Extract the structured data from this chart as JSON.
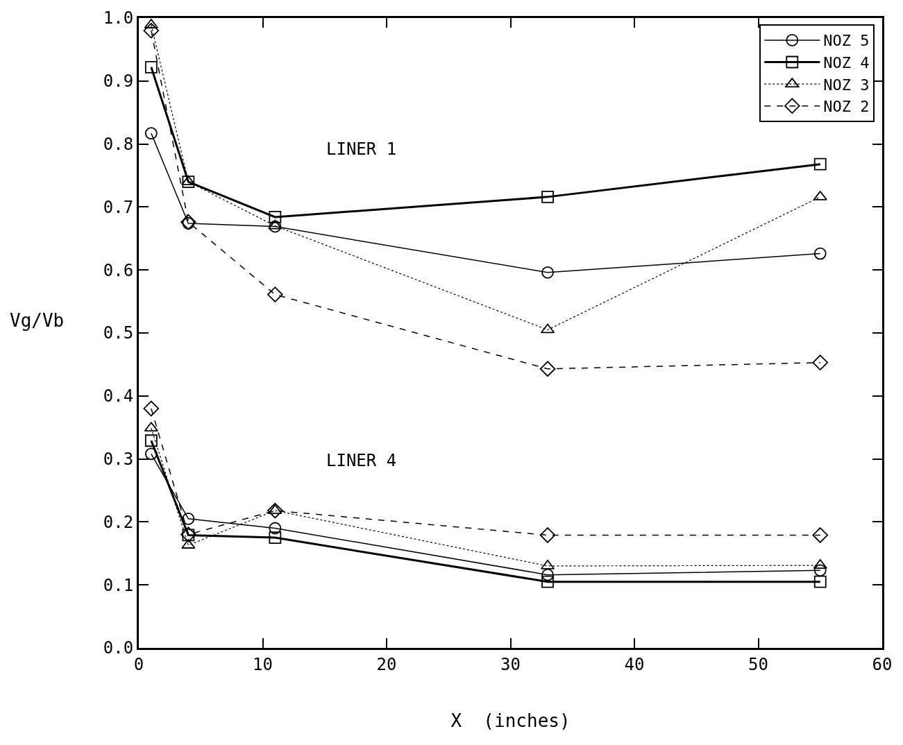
{
  "chart_data": {
    "type": "line",
    "xlabel": "X  (inches)",
    "ylabel": "Vg/Vb",
    "x": [
      1,
      4,
      11,
      33,
      55
    ],
    "series": [
      {
        "name": "NOZ 5",
        "color": "#000000",
        "marker": "circle",
        "line_style": "solid",
        "values": [
          0.817,
          0.674,
          0.669,
          0.596,
          0.626
        ]
      },
      {
        "name": "NOZ 4",
        "color": "#000000",
        "marker": "square",
        "line_style": "solid",
        "values": [
          0.922,
          0.74,
          0.684,
          0.716,
          0.768
        ]
      },
      {
        "name": "NOZ 3",
        "color": "#000000",
        "marker": "triangle",
        "line_style": "dotted",
        "values": [
          0.989,
          0.74,
          0.67,
          0.505,
          0.716
        ]
      },
      {
        "name": "NOZ 2",
        "color": "#000000",
        "marker": "diamond",
        "line_style": "dashed",
        "values": [
          0.98,
          0.676,
          0.561,
          0.443,
          0.453
        ]
      },
      {
        "color": "#000000",
        "marker": "circle",
        "line_style": "solid",
        "values": [
          0.308,
          0.205,
          0.19,
          0.116,
          0.123
        ]
      },
      {
        "color": "#000000",
        "marker": "square",
        "line_style": "solid",
        "values": [
          0.329,
          0.179,
          0.175,
          0.105,
          0.105
        ]
      },
      {
        "color": "#000000",
        "marker": "triangle",
        "line_style": "dotted",
        "values": [
          0.349,
          0.163,
          0.218,
          0.13,
          0.131
        ]
      },
      {
        "color": "#000000",
        "marker": "diamond",
        "line_style": "dashed",
        "values": [
          0.38,
          0.18,
          0.218,
          0.179,
          0.179
        ]
      }
    ],
    "annotations": [
      "LINER 1",
      "LINER 4"
    ],
    "xlim": [
      0,
      60
    ],
    "xticks": [
      0,
      10,
      20,
      30,
      40,
      50,
      60
    ],
    "ylim": [
      0,
      1
    ],
    "yticks": [
      {
        "value": 0,
        "label": "0.0"
      },
      0.1,
      0.2,
      0.3,
      0.4,
      0.5,
      0.6,
      0.7,
      0.8,
      0.9,
      {
        "value": 1,
        "label": "1.0"
      }
    ],
    "legend": "top right"
  }
}
